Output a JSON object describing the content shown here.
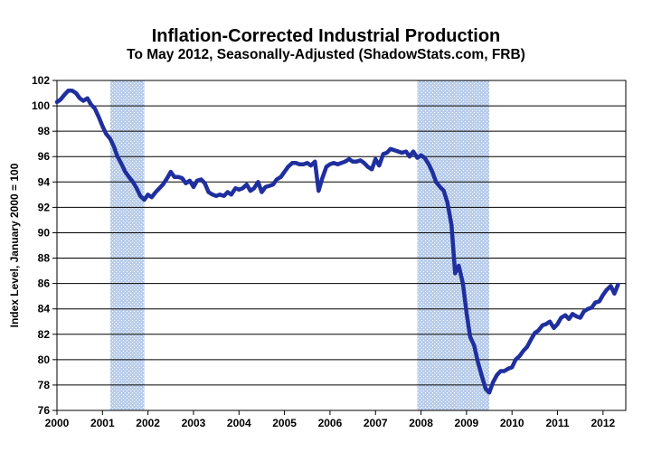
{
  "title": "Inflation-Corrected Industrial Production",
  "subtitle": "To May 2012, Seasonally-Adjusted (ShadowStats.com, FRB)",
  "chart_data": {
    "type": "line",
    "title": "Inflation-Corrected Industrial Production",
    "subtitle": "To May 2012, Seasonally-Adjusted (ShadowStats.com, FRB)",
    "xlabel": "",
    "ylabel": "Index Level, January 2000 = 100",
    "xlim": [
      2000,
      2012.5
    ],
    "ylim": [
      76,
      102
    ],
    "x_ticks": [
      "2000",
      "2001",
      "2002",
      "2003",
      "2004",
      "2005",
      "2006",
      "2007",
      "2008",
      "2009",
      "2010",
      "2011",
      "2012"
    ],
    "y_ticks": [
      "76",
      "78",
      "80",
      "82",
      "84",
      "86",
      "88",
      "90",
      "92",
      "94",
      "96",
      "98",
      "100",
      "102"
    ],
    "grid": true,
    "line_color": "#1f2f9e",
    "shade_color": "#b9cdea",
    "recessions": [
      [
        2001.17,
        2001.92
      ],
      [
        2007.92,
        2009.5
      ]
    ],
    "x": [
      2000.0,
      2000.08,
      2000.17,
      2000.25,
      2000.33,
      2000.42,
      2000.5,
      2000.58,
      2000.67,
      2000.75,
      2000.83,
      2000.92,
      2001.0,
      2001.08,
      2001.17,
      2001.25,
      2001.33,
      2001.42,
      2001.5,
      2001.58,
      2001.67,
      2001.75,
      2001.83,
      2001.92,
      2002.0,
      2002.08,
      2002.17,
      2002.25,
      2002.33,
      2002.42,
      2002.5,
      2002.58,
      2002.67,
      2002.75,
      2002.83,
      2002.92,
      2003.0,
      2003.08,
      2003.17,
      2003.25,
      2003.33,
      2003.42,
      2003.5,
      2003.58,
      2003.67,
      2003.75,
      2003.83,
      2003.92,
      2004.0,
      2004.08,
      2004.17,
      2004.25,
      2004.33,
      2004.42,
      2004.5,
      2004.58,
      2004.67,
      2004.75,
      2004.83,
      2004.92,
      2005.0,
      2005.08,
      2005.17,
      2005.25,
      2005.33,
      2005.42,
      2005.5,
      2005.58,
      2005.67,
      2005.75,
      2005.83,
      2005.92,
      2006.0,
      2006.08,
      2006.17,
      2006.25,
      2006.33,
      2006.42,
      2006.5,
      2006.58,
      2006.67,
      2006.75,
      2006.83,
      2006.92,
      2007.0,
      2007.08,
      2007.17,
      2007.25,
      2007.33,
      2007.42,
      2007.5,
      2007.58,
      2007.67,
      2007.75,
      2007.83,
      2007.92,
      2008.0,
      2008.08,
      2008.17,
      2008.25,
      2008.33,
      2008.42,
      2008.5,
      2008.58,
      2008.67,
      2008.75,
      2008.83,
      2008.92,
      2009.0,
      2009.08,
      2009.17,
      2009.25,
      2009.33,
      2009.42,
      2009.5,
      2009.58,
      2009.67,
      2009.75,
      2009.83,
      2009.92,
      2010.0,
      2010.08,
      2010.17,
      2010.25,
      2010.33,
      2010.42,
      2010.5,
      2010.58,
      2010.67,
      2010.75,
      2010.83,
      2010.92,
      2011.0,
      2011.08,
      2011.17,
      2011.25,
      2011.33,
      2011.42,
      2011.5,
      2011.58,
      2011.67,
      2011.75,
      2011.83,
      2011.92,
      2012.0,
      2012.08,
      2012.17,
      2012.25,
      2012.33
    ],
    "y": [
      100.3,
      100.5,
      100.9,
      101.2,
      101.2,
      101.0,
      100.6,
      100.4,
      100.6,
      100.1,
      99.8,
      99.1,
      98.4,
      97.8,
      97.4,
      96.8,
      96.0,
      95.4,
      94.8,
      94.4,
      94.0,
      93.5,
      92.9,
      92.6,
      93.0,
      92.8,
      93.2,
      93.5,
      93.8,
      94.3,
      94.8,
      94.4,
      94.4,
      94.3,
      93.9,
      94.1,
      93.6,
      94.1,
      94.2,
      93.9,
      93.2,
      93.0,
      92.9,
      93.0,
      92.9,
      93.2,
      93.0,
      93.5,
      93.4,
      93.5,
      93.8,
      93.3,
      93.5,
      94.0,
      93.2,
      93.6,
      93.7,
      93.8,
      94.2,
      94.4,
      94.8,
      95.2,
      95.5,
      95.5,
      95.4,
      95.4,
      95.5,
      95.3,
      95.6,
      93.3,
      94.3,
      95.2,
      95.4,
      95.5,
      95.4,
      95.5,
      95.6,
      95.8,
      95.6,
      95.6,
      95.7,
      95.5,
      95.2,
      95.0,
      95.8,
      95.3,
      96.2,
      96.3,
      96.6,
      96.5,
      96.4,
      96.3,
      96.4,
      96.0,
      96.4,
      95.9,
      96.1,
      95.9,
      95.4,
      94.8,
      94.0,
      93.6,
      93.3,
      92.4,
      90.6,
      86.8,
      87.4,
      86.0,
      83.7,
      81.8,
      81.1,
      79.8,
      78.8,
      77.7,
      77.4,
      78.2,
      78.8,
      79.1,
      79.1,
      79.3,
      79.4,
      80.0,
      80.3,
      80.7,
      81.0,
      81.6,
      82.1,
      82.3,
      82.7,
      82.8,
      83.0,
      82.5,
      82.8,
      83.3,
      83.5,
      83.2,
      83.6,
      83.4,
      83.3,
      83.8,
      84.0,
      84.1,
      84.5,
      84.6,
      85.1,
      85.5,
      85.8,
      85.2,
      85.9
    ]
  }
}
